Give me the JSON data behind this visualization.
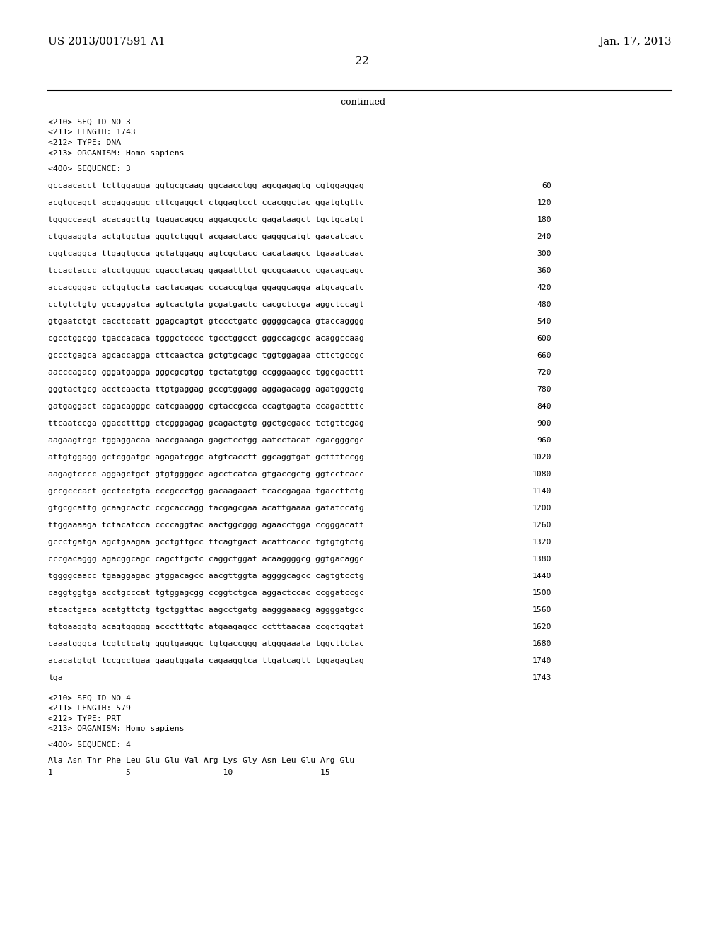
{
  "patent_number": "US 2013/0017591 A1",
  "date": "Jan. 17, 2013",
  "page_number": "22",
  "continued_label": "-continued",
  "background_color": "#ffffff",
  "text_color": "#000000",
  "seq_header": [
    "<210> SEQ ID NO 3",
    "<211> LENGTH: 1743",
    "<212> TYPE: DNA",
    "<213> ORGANISM: Homo sapiens"
  ],
  "seq_label": "<400> SEQUENCE: 3",
  "sequence_lines": [
    [
      "gccaacacct tcttggagga ggtgcgcaag ggcaacctgg agcgagagtg cgtggaggag",
      "60"
    ],
    [
      "acgtgcagct acgaggaggc cttcgaggct ctggagtcct ccacggctac ggatgtgttc",
      "120"
    ],
    [
      "tgggccaagt acacagcttg tgagacagcg aggacgcctc gagataagct tgctgcatgt",
      "180"
    ],
    [
      "ctggaaggta actgtgctga gggtctgggt acgaactacc gagggcatgt gaacatcacc",
      "240"
    ],
    [
      "cggtcaggca ttgagtgcca gctatggagg agtcgctacc cacataagcc tgaaatcaac",
      "300"
    ],
    [
      "tccactaccc atcctggggc cgacctacag gagaatttct gccgcaaccc cgacagcagc",
      "360"
    ],
    [
      "accacgggac cctggtgcta cactacagac cccaccgtga ggaggcagga atgcagcatc",
      "420"
    ],
    [
      "cctgtctgtg gccaggatca agtcactgta gcgatgactc cacgctccga aggctccagt",
      "480"
    ],
    [
      "gtgaatctgt cacctccatt ggagcagtgt gtccctgatc gggggcagca gtaccagggg",
      "540"
    ],
    [
      "cgcctggcgg tgaccacaca tgggctcccc tgcctggcct gggccagcgc acaggccaag",
      "600"
    ],
    [
      "gccctgagca agcaccagga cttcaactca gctgtgcagc tggtggagaa cttctgccgc",
      "660"
    ],
    [
      "aacccagacg gggatgagga gggcgcgtgg tgctatgtgg ccgggaagcc tggcgacttt",
      "720"
    ],
    [
      "gggtactgcg acctcaacta ttgtgaggag gccgtggagg aggagacagg agatgggctg",
      "780"
    ],
    [
      "gatgaggact cagacagggc catcgaaggg cgtaccgcca ccagtgagta ccagactttc",
      "840"
    ],
    [
      "ttcaatccga ggacctttgg ctcgggagag gcagactgtg ggctgcgacc tctgttcgag",
      "900"
    ],
    [
      "aagaagtcgc tggaggacaa aaccgaaaga gagctcctgg aatcctacat cgacgggcgc",
      "960"
    ],
    [
      "attgtggagg gctcggatgc agagatcggc atgtcacctt ggcaggtgat gcttttccgg",
      "1020"
    ],
    [
      "aagagtcccc aggagctgct gtgtggggcc agcctcatca gtgaccgctg ggtcctcacc",
      "1080"
    ],
    [
      "gccgcccact gcctcctgta cccgccctgg gacaagaact tcaccgagaa tgaccttctg",
      "1140"
    ],
    [
      "gtgcgcattg gcaagcactc ccgcaccagg tacgagcgaa acattgaaaa gatatccatg",
      "1200"
    ],
    [
      "ttggaaaaga tctacatcca ccccaggtac aactggcggg agaacctgga ccgggacatt",
      "1260"
    ],
    [
      "gccctgatga agctgaagaa gcctgttgcc ttcagtgact acattcaccc tgtgtgtctg",
      "1320"
    ],
    [
      "cccgacaggg agacggcagc cagcttgctc caggctggat acaaggggcg ggtgacaggc",
      "1380"
    ],
    [
      "tggggcaacc tgaaggagac gtggacagcc aacgttggta aggggcagcc cagtgtcctg",
      "1440"
    ],
    [
      "caggtggtga acctgcccat tgtggagcgg ccggtctgca aggactccac ccggatccgc",
      "1500"
    ],
    [
      "atcactgaca acatgttctg tgctggttac aagcctgatg aagggaaacg aggggatgcc",
      "1560"
    ],
    [
      "tgtgaaggtg acagtggggg accctttgtc atgaagagcc cctttaacaa ccgctggtat",
      "1620"
    ],
    [
      "caaatgggca tcgtctcatg gggtgaaggc tgtgaccggg atgggaaata tggcttctac",
      "1680"
    ],
    [
      "acacatgtgt tccgcctgaa gaagtggata cagaaggtca ttgatcagtt tggagagtag",
      "1740"
    ],
    [
      "tga",
      "1743"
    ]
  ],
  "seq2_header": [
    "<210> SEQ ID NO 4",
    "<211> LENGTH: 579",
    "<212> TYPE: PRT",
    "<213> ORGANISM: Homo sapiens"
  ],
  "seq2_label": "<400> SEQUENCE: 4",
  "seq2_line1": "Ala Asn Thr Phe Leu Glu Glu Val Arg Lys Gly Asn Leu Glu Arg Glu",
  "seq2_line2": "1               5                   10                  15"
}
